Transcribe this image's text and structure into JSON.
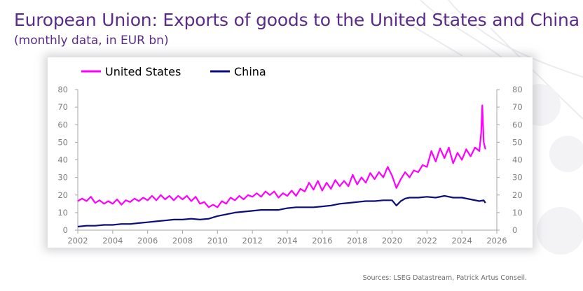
{
  "page": {
    "title": "European Union: Exports of goods to the United States and China",
    "subtitle": "(monthly data, in EUR bn)",
    "source": "Sources: LSEG Datastream, Patrick Artus Conseil."
  },
  "colors": {
    "title": "#5b2b8a",
    "us": "#ff00ff",
    "china": "#0d0d7a",
    "axis": "#a6a6a6",
    "tick_text": "#7f7f7f"
  },
  "chart_data": {
    "type": "line",
    "title": "European Union: Exports of goods to the United States and China",
    "subtitle": "(monthly data, in EUR bn)",
    "xlabel": "",
    "ylabel": "",
    "xlim": [
      2002,
      2026
    ],
    "ylim": [
      0,
      80
    ],
    "x_ticks": [
      "2002",
      "2004",
      "2006",
      "2008",
      "2010",
      "2012",
      "2014",
      "2016",
      "2018",
      "2020",
      "2022",
      "2024",
      "2026"
    ],
    "y_ticks": [
      "0",
      "10",
      "20",
      "30",
      "40",
      "50",
      "60",
      "70",
      "80"
    ],
    "y_ticks_right": [
      "0",
      "10",
      "20",
      "30",
      "40",
      "50",
      "60",
      "70",
      "80"
    ],
    "grid": false,
    "legend": {
      "position": "top-left"
    },
    "series": [
      {
        "name": "United States",
        "color": "#ff00ff",
        "points": [
          [
            2002.0,
            16.5
          ],
          [
            2002.25,
            18
          ],
          [
            2002.5,
            16.5
          ],
          [
            2002.75,
            19
          ],
          [
            2003.0,
            15.5
          ],
          [
            2003.25,
            17
          ],
          [
            2003.5,
            15
          ],
          [
            2003.75,
            16.5
          ],
          [
            2004.0,
            15
          ],
          [
            2004.25,
            17.5
          ],
          [
            2004.5,
            14.5
          ],
          [
            2004.75,
            17
          ],
          [
            2005.0,
            16
          ],
          [
            2005.25,
            18
          ],
          [
            2005.5,
            16.5
          ],
          [
            2005.75,
            18.5
          ],
          [
            2006.0,
            17
          ],
          [
            2006.25,
            19.5
          ],
          [
            2006.5,
            17
          ],
          [
            2006.75,
            20
          ],
          [
            2007.0,
            17.5
          ],
          [
            2007.25,
            19.5
          ],
          [
            2007.5,
            17
          ],
          [
            2007.75,
            19.5
          ],
          [
            2008.0,
            17.5
          ],
          [
            2008.25,
            19.5
          ],
          [
            2008.5,
            16.5
          ],
          [
            2008.75,
            19
          ],
          [
            2009.0,
            15
          ],
          [
            2009.25,
            16
          ],
          [
            2009.5,
            13
          ],
          [
            2009.75,
            14.5
          ],
          [
            2010.0,
            13
          ],
          [
            2010.25,
            16.5
          ],
          [
            2010.5,
            15
          ],
          [
            2010.75,
            18.5
          ],
          [
            2011.0,
            17
          ],
          [
            2011.25,
            19.5
          ],
          [
            2011.5,
            17.5
          ],
          [
            2011.75,
            20
          ],
          [
            2012.0,
            19
          ],
          [
            2012.25,
            21
          ],
          [
            2012.5,
            19
          ],
          [
            2012.75,
            22
          ],
          [
            2013.0,
            20
          ],
          [
            2013.25,
            22
          ],
          [
            2013.5,
            18.5
          ],
          [
            2013.75,
            21
          ],
          [
            2014.0,
            19.5
          ],
          [
            2014.25,
            22.5
          ],
          [
            2014.5,
            19.5
          ],
          [
            2014.75,
            23.5
          ],
          [
            2015.0,
            22
          ],
          [
            2015.25,
            27
          ],
          [
            2015.5,
            23
          ],
          [
            2015.75,
            28
          ],
          [
            2016.0,
            22.5
          ],
          [
            2016.25,
            27
          ],
          [
            2016.5,
            23.5
          ],
          [
            2016.75,
            28.5
          ],
          [
            2017.0,
            25
          ],
          [
            2017.25,
            28
          ],
          [
            2017.5,
            25
          ],
          [
            2017.75,
            31.5
          ],
          [
            2018.0,
            26
          ],
          [
            2018.25,
            30
          ],
          [
            2018.5,
            27
          ],
          [
            2018.75,
            32.5
          ],
          [
            2019.0,
            29
          ],
          [
            2019.25,
            33
          ],
          [
            2019.5,
            30
          ],
          [
            2019.75,
            36
          ],
          [
            2020.0,
            31
          ],
          [
            2020.25,
            24
          ],
          [
            2020.5,
            29
          ],
          [
            2020.75,
            33
          ],
          [
            2021.0,
            30
          ],
          [
            2021.25,
            34
          ],
          [
            2021.5,
            33
          ],
          [
            2021.75,
            37
          ],
          [
            2022.0,
            36
          ],
          [
            2022.25,
            45
          ],
          [
            2022.5,
            39
          ],
          [
            2022.75,
            46.5
          ],
          [
            2023.0,
            41
          ],
          [
            2023.25,
            47
          ],
          [
            2023.5,
            38
          ],
          [
            2023.75,
            44
          ],
          [
            2024.0,
            40
          ],
          [
            2024.25,
            46
          ],
          [
            2024.5,
            42
          ],
          [
            2024.75,
            47
          ],
          [
            2025.0,
            45
          ],
          [
            2025.1,
            55
          ],
          [
            2025.17,
            71
          ],
          [
            2025.25,
            50
          ],
          [
            2025.35,
            46
          ]
        ]
      },
      {
        "name": "China",
        "color": "#0d0d7a",
        "points": [
          [
            2002.0,
            2
          ],
          [
            2002.5,
            2.5
          ],
          [
            2003.0,
            2.5
          ],
          [
            2003.5,
            3
          ],
          [
            2004.0,
            3
          ],
          [
            2004.5,
            3.5
          ],
          [
            2005.0,
            3.5
          ],
          [
            2005.5,
            4
          ],
          [
            2006.0,
            4.5
          ],
          [
            2006.5,
            5
          ],
          [
            2007.0,
            5.5
          ],
          [
            2007.5,
            6
          ],
          [
            2008.0,
            6
          ],
          [
            2008.5,
            6.5
          ],
          [
            2009.0,
            6
          ],
          [
            2009.5,
            6.5
          ],
          [
            2010.0,
            8
          ],
          [
            2010.5,
            9
          ],
          [
            2011.0,
            10
          ],
          [
            2011.5,
            10.5
          ],
          [
            2012.0,
            11
          ],
          [
            2012.5,
            11.5
          ],
          [
            2013.0,
            11.5
          ],
          [
            2013.5,
            11.5
          ],
          [
            2014.0,
            12.5
          ],
          [
            2014.5,
            13
          ],
          [
            2015.0,
            13
          ],
          [
            2015.5,
            13
          ],
          [
            2016.0,
            13.5
          ],
          [
            2016.5,
            14
          ],
          [
            2017.0,
            15
          ],
          [
            2017.5,
            15.5
          ],
          [
            2018.0,
            16
          ],
          [
            2018.5,
            16.5
          ],
          [
            2019.0,
            16.5
          ],
          [
            2019.5,
            17
          ],
          [
            2020.0,
            17
          ],
          [
            2020.25,
            14
          ],
          [
            2020.5,
            16.5
          ],
          [
            2020.75,
            18
          ],
          [
            2021.0,
            18.5
          ],
          [
            2021.5,
            18.5
          ],
          [
            2022.0,
            19
          ],
          [
            2022.5,
            18.5
          ],
          [
            2023.0,
            19.5
          ],
          [
            2023.5,
            18.5
          ],
          [
            2024.0,
            18.5
          ],
          [
            2024.5,
            17.5
          ],
          [
            2025.0,
            16.5
          ],
          [
            2025.25,
            17
          ],
          [
            2025.35,
            15.5
          ]
        ]
      }
    ]
  }
}
